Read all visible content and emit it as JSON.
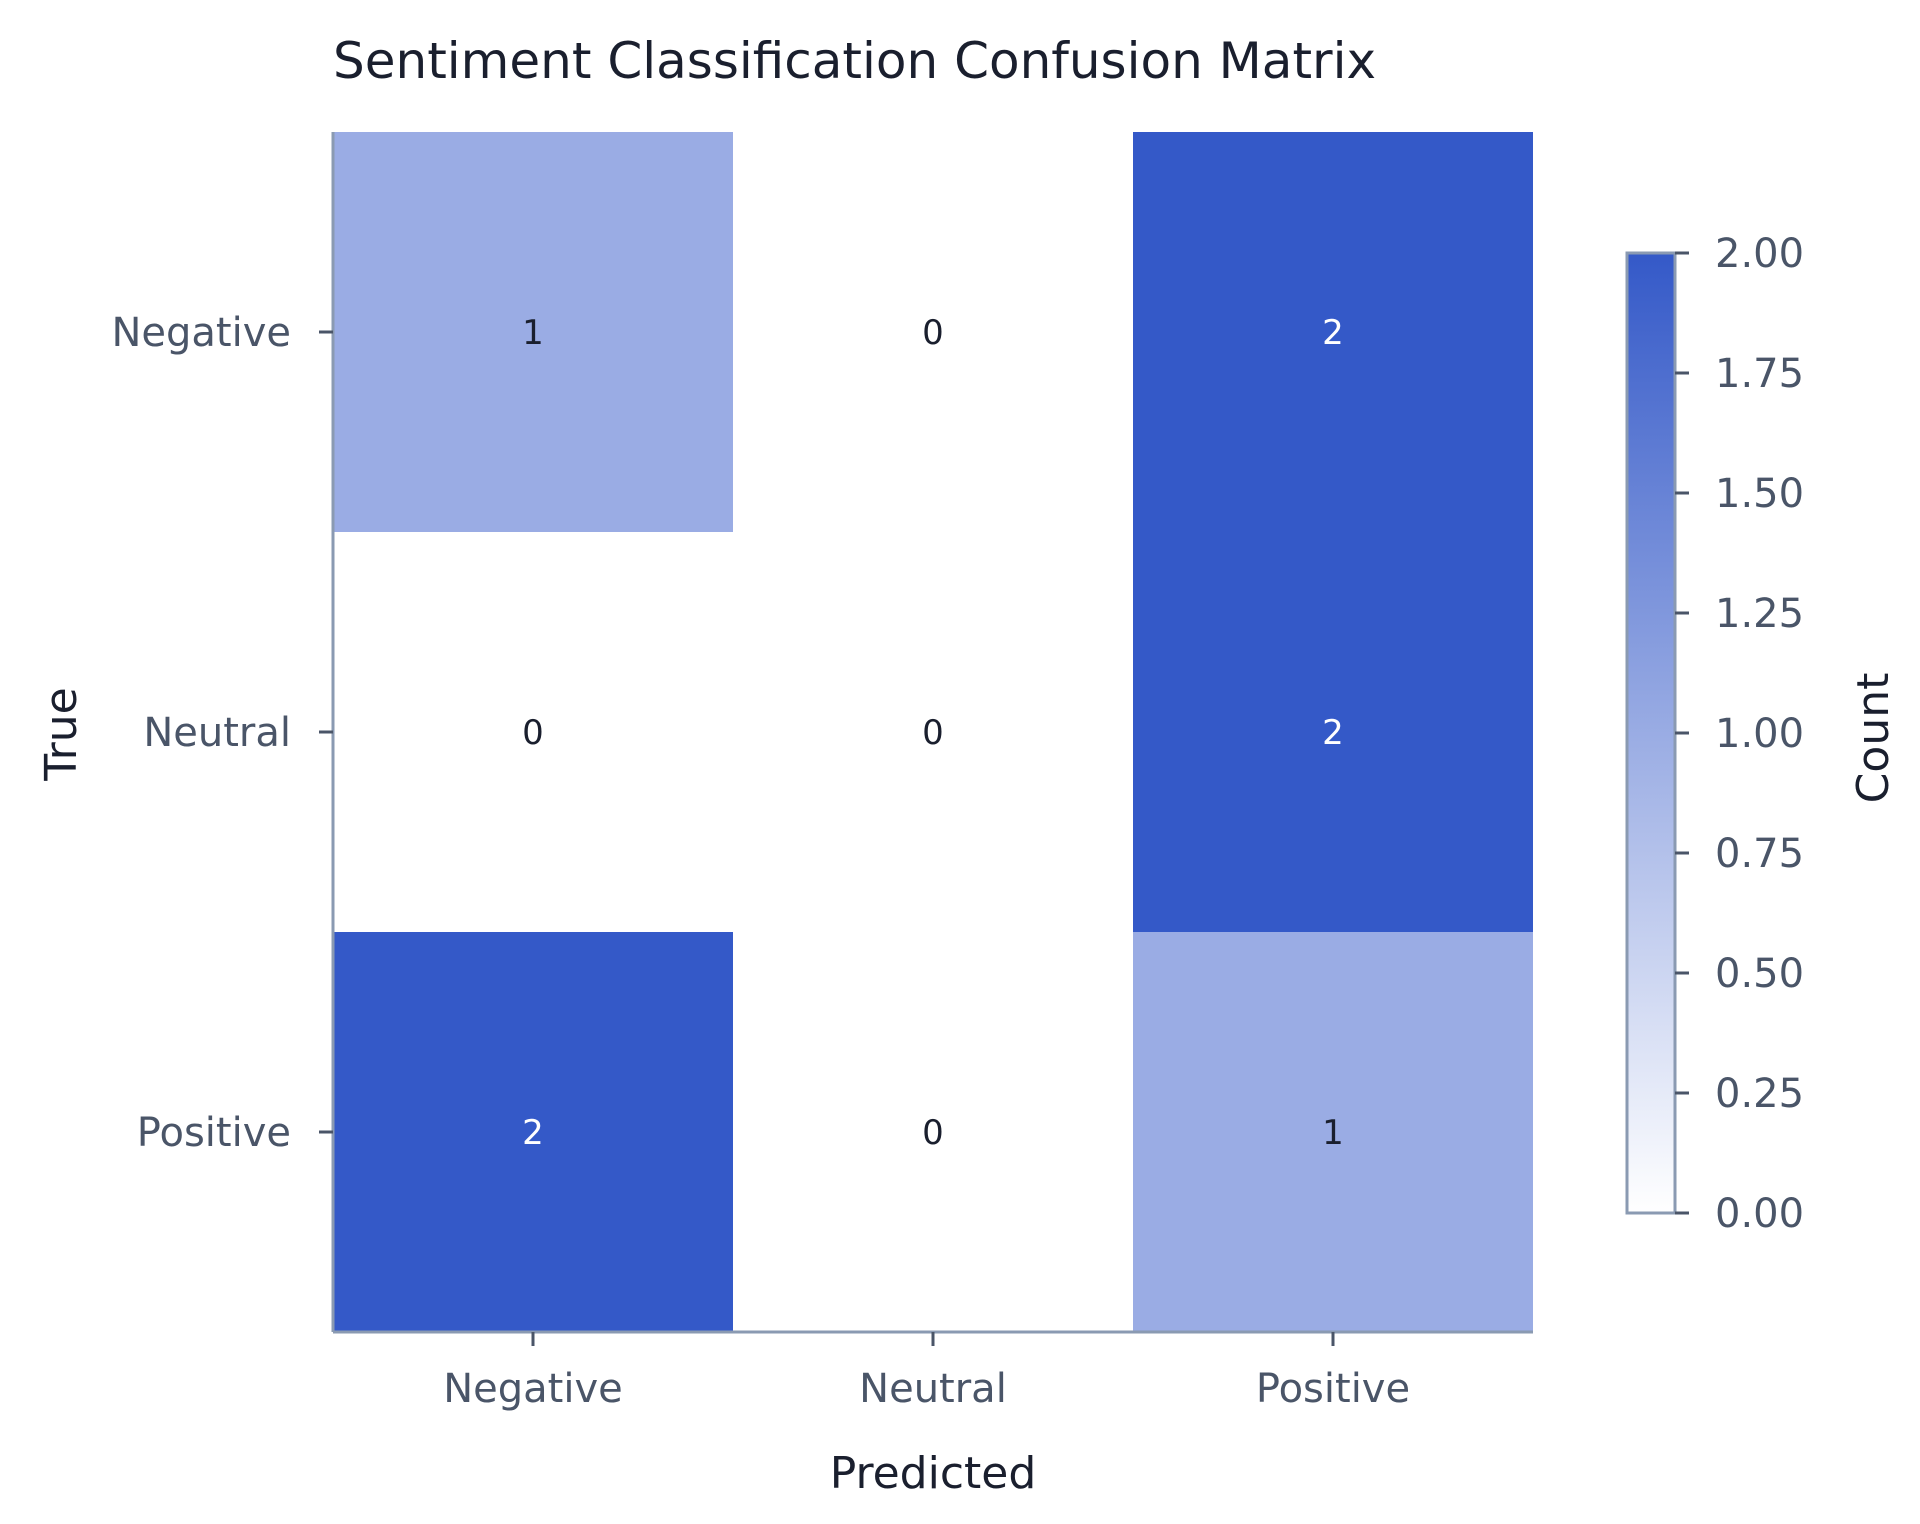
{
  "chart_data": {
    "type": "heatmap",
    "title": "Sentiment Classification Confusion Matrix",
    "xlabel": "Predicted",
    "ylabel": "True",
    "x_categories": [
      "Negative",
      "Neutral",
      "Positive"
    ],
    "y_categories": [
      "Negative",
      "Neutral",
      "Positive"
    ],
    "values": [
      [
        1,
        0,
        2
      ],
      [
        0,
        0,
        2
      ],
      [
        2,
        0,
        1
      ]
    ],
    "colorbar": {
      "label": "Count",
      "range": [
        0,
        2
      ],
      "ticks": [
        "0.00",
        "0.25",
        "0.50",
        "0.75",
        "1.00",
        "1.25",
        "1.50",
        "1.75",
        "2.00"
      ]
    },
    "colors": {
      "low": "#ffffff",
      "high": "#3459c8",
      "axis": "#8a9ab2",
      "text_dark": "#1a1f2e",
      "text_light": "#ffffff"
    }
  }
}
